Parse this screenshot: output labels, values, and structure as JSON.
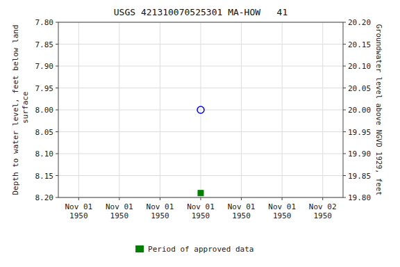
{
  "chart_data": {
    "type": "scatter",
    "title": "USGS 421310070525301 MA-HOW   41",
    "y_label": "Depth to water level, feet below land\n surface",
    "y2_label": "Groundwater level above NGVD 1929, feet",
    "categories": [
      "Nov 01\n1950",
      "Nov 01\n1950",
      "Nov 01\n1950",
      "Nov 01\n1950",
      "Nov 01\n1950",
      "Nov 01\n1950",
      "Nov 02\n1950"
    ],
    "series": [
      {
        "color": "blue",
        "marker": "circle",
        "values": [
          null,
          null,
          null,
          8.0,
          null,
          null,
          null
        ]
      },
      {
        "name": "Period of approved data",
        "color": "#008000",
        "marker": "square",
        "values": [
          null,
          null,
          null,
          8.19,
          null,
          null,
          null
        ]
      }
    ],
    "ylim": [
      8.2,
      7.8
    ],
    "yticks": [
      {
        "value": 7.8,
        "label": "7.80"
      },
      7.85,
      {
        "value": 7.9,
        "label": "7.90"
      },
      7.95,
      {
        "value": 8,
        "label": "8.00"
      },
      8.05,
      {
        "value": 8.1,
        "label": "8.10"
      },
      8.15,
      {
        "value": 8.2,
        "label": "8.20"
      }
    ],
    "y2lim": [
      19.8,
      20.2
    ],
    "y2ticks": [
      {
        "value": 19.8,
        "label": "19.80"
      },
      19.85,
      {
        "value": 19.9,
        "label": "19.90"
      },
      19.95,
      {
        "value": 20,
        "label": "20.00"
      },
      20.05,
      {
        "value": 20.1,
        "label": "20.10"
      },
      20.15,
      {
        "value": 20.2,
        "label": "20.20"
      }
    ],
    "grid": true,
    "legend": "bottom"
  }
}
